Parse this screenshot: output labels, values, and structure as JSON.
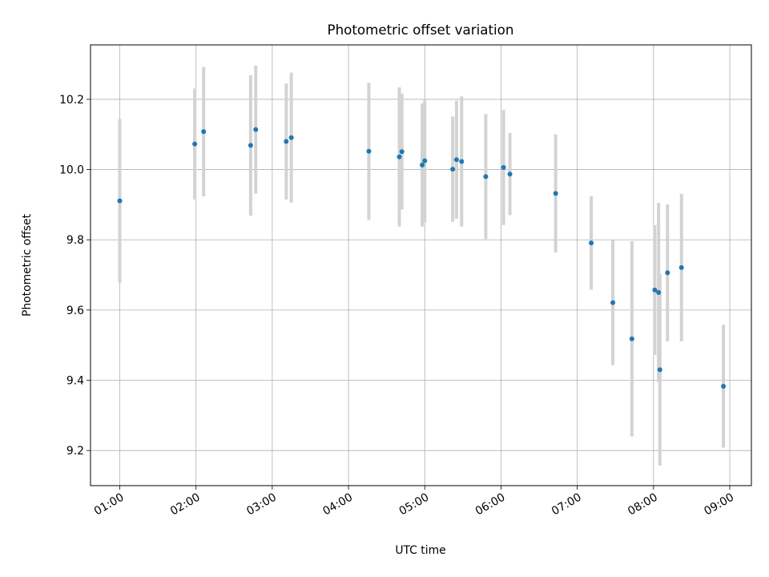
{
  "chart_data": {
    "type": "scatter",
    "title": "Photometric offset variation",
    "xlabel": "UTC time",
    "ylabel": "Photometric offset",
    "xlim": [
      "00:37",
      "09:17"
    ],
    "ylim": [
      9.1,
      10.355
    ],
    "grid": true,
    "legend": "none",
    "x_ticks": [
      "01:00",
      "02:00",
      "03:00",
      "04:00",
      "05:00",
      "06:00",
      "07:00",
      "08:00",
      "09:00"
    ],
    "y_ticks": [
      "9.2",
      "9.4",
      "9.6",
      "9.8",
      "10.0",
      "10.2"
    ],
    "colors": {
      "points": "#1f77b4",
      "errorbars": "#d3d3d3",
      "grid": "#b0b0b0"
    },
    "series": [
      {
        "x": [
          "01:00",
          "01:59",
          "02:06",
          "02:43",
          "02:47",
          "03:11",
          "03:15",
          "04:16",
          "04:40",
          "04:42",
          "04:58",
          "05:00",
          "05:22",
          "05:25",
          "05:29",
          "05:48",
          "06:02",
          "06:07",
          "06:43",
          "07:11",
          "07:28",
          "07:43",
          "08:01",
          "08:04",
          "08:05",
          "08:11",
          "08:22",
          "08:55"
        ],
        "y": [
          9.911,
          10.073,
          10.108,
          10.069,
          10.114,
          10.08,
          10.091,
          10.052,
          10.036,
          10.051,
          10.013,
          10.025,
          10.001,
          10.028,
          10.023,
          9.98,
          10.006,
          9.987,
          9.932,
          9.791,
          9.621,
          9.518,
          9.657,
          9.65,
          9.43,
          9.706,
          9.721,
          9.383
        ],
        "yerr": [
          0.233,
          0.158,
          0.184,
          0.2,
          0.182,
          0.165,
          0.185,
          0.195,
          0.198,
          0.165,
          0.175,
          0.175,
          0.15,
          0.168,
          0.185,
          0.178,
          0.164,
          0.117,
          0.168,
          0.133,
          0.178,
          0.278,
          0.185,
          0.255,
          0.273,
          0.195,
          0.21,
          0.175
        ]
      }
    ]
  }
}
